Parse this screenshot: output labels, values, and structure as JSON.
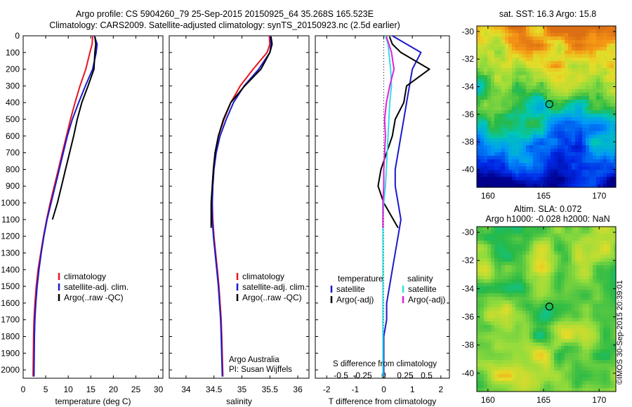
{
  "titles": {
    "line1": "Argo profile: CS 5904260_79 25-Sep-2015 20150925_64 35.268S 165.523E",
    "line2": "Climatology: CARS2009. Satellite-adjusted climatology: synTS_20150923.nc (2.5d earlier)"
  },
  "annotations": {
    "agency": "Argo Australia",
    "pi": "PI: Susan Wijffels",
    "sst": "sat. SST: 16.3 Argo: 15.8",
    "sla_line1": "Altim. SLA: 0.072",
    "sla_line2": "Argo h1000: -0.028 h2000: NaN",
    "stamp": "©IMOS 30-Sep-2015 20:39:01",
    "s_diff_label": "S difference from climatology"
  },
  "colors": {
    "climatology": "#e8141e",
    "satellite": "#1a1acc",
    "argo": "#000000",
    "sal_sat": "#33dde8",
    "sal_argo": "#e020d8"
  },
  "chart_data": [
    {
      "type": "line",
      "xlabel": "temperature (deg C)",
      "ylabel": "",
      "xlim": [
        0,
        31
      ],
      "ylim": [
        2050,
        0
      ],
      "xticks": [
        "0",
        "5",
        "10",
        "15",
        "20",
        "25",
        "30"
      ],
      "yticks": [
        "0",
        "100",
        "200",
        "300",
        "400",
        "500",
        "600",
        "700",
        "800",
        "900",
        "1000",
        "1100",
        "1200",
        "1300",
        "1400",
        "1500",
        "1600",
        "1700",
        "1800",
        "1900",
        "2000"
      ],
      "legend": [
        "climatology",
        "satellite-adj. clim.",
        "Argo(..raw -QC)"
      ],
      "series": [
        {
          "name": "climatology",
          "color": "#e8141e",
          "x": [
            15.4,
            15.3,
            14.8,
            13.9,
            12.6,
            11.5,
            10.5,
            9.6,
            8.7,
            7.8,
            6.9,
            6.0,
            5.2,
            4.5,
            3.9,
            3.3,
            2.9,
            2.6,
            2.4,
            2.3,
            2.2
          ],
          "y": [
            0,
            50,
            100,
            200,
            300,
            400,
            500,
            600,
            700,
            800,
            900,
            1000,
            1100,
            1200,
            1300,
            1400,
            1500,
            1600,
            1700,
            1800,
            2040
          ]
        },
        {
          "name": "satellite-adj. clim.",
          "color": "#1a1acc",
          "x": [
            15.8,
            16.4,
            16.2,
            15.4,
            13.8,
            12.3,
            10.9,
            9.8,
            8.9,
            8.0,
            7.1,
            6.2,
            5.3,
            4.6,
            4.0,
            3.5,
            3.1,
            2.8,
            2.6,
            2.5,
            2.4
          ],
          "y": [
            0,
            50,
            100,
            200,
            300,
            400,
            500,
            600,
            700,
            800,
            900,
            1000,
            1100,
            1200,
            1300,
            1400,
            1500,
            1600,
            1700,
            1800,
            2040
          ]
        },
        {
          "name": "Argo(..raw -QC)",
          "color": "#000000",
          "x": [
            15.9,
            16.1,
            15.9,
            15.7,
            14.4,
            13.0,
            12.0,
            11.2,
            10.3,
            9.4,
            8.5,
            7.6,
            6.5
          ],
          "y": [
            5,
            50,
            100,
            200,
            300,
            400,
            500,
            600,
            700,
            800,
            900,
            1000,
            1100
          ]
        }
      ]
    },
    {
      "type": "line",
      "xlabel": "salinity",
      "ylabel": "",
      "xlim": [
        33.7,
        36.2
      ],
      "ylim": [
        2050,
        0
      ],
      "xticks": [
        "34",
        "34.5",
        "35",
        "35.5",
        "36"
      ],
      "legend": [
        "climatology",
        "satellite-adj. clim.",
        "Argo(..raw -QC)"
      ],
      "series": [
        {
          "name": "climatology",
          "color": "#e8141e",
          "x": [
            35.49,
            35.5,
            35.45,
            35.2,
            34.97,
            34.8,
            34.68,
            34.58,
            34.52,
            34.49,
            34.47,
            34.47,
            34.48,
            34.5,
            34.53,
            34.56,
            34.59,
            34.61,
            34.63,
            34.64,
            34.66
          ],
          "y": [
            0,
            50,
            100,
            200,
            300,
            400,
            500,
            600,
            700,
            800,
            900,
            1000,
            1100,
            1200,
            1300,
            1400,
            1500,
            1600,
            1700,
            1800,
            2040
          ]
        },
        {
          "name": "satellite-adj. clim.",
          "color": "#1a1acc",
          "x": [
            35.51,
            35.52,
            35.5,
            35.3,
            35.04,
            34.85,
            34.72,
            34.61,
            34.54,
            34.5,
            34.48,
            34.47,
            34.47,
            34.49,
            34.52,
            34.55,
            34.58,
            34.6,
            34.62,
            34.63,
            34.65
          ],
          "y": [
            0,
            50,
            100,
            200,
            300,
            400,
            500,
            600,
            700,
            800,
            900,
            1000,
            1100,
            1200,
            1300,
            1400,
            1500,
            1600,
            1700,
            1800,
            2040
          ]
        },
        {
          "name": "Argo(..raw -QC)",
          "color": "#000000",
          "x": [
            35.52,
            35.54,
            35.5,
            35.34,
            35.05,
            34.8,
            34.67,
            34.58,
            34.52,
            34.49,
            34.47,
            34.45,
            34.45
          ],
          "y": [
            5,
            50,
            100,
            200,
            300,
            400,
            500,
            600,
            700,
            800,
            900,
            1000,
            1150
          ]
        }
      ]
    },
    {
      "type": "line",
      "xlabel": "T difference from climatology",
      "ylabel": "",
      "xlim": [
        -2.4,
        2.3
      ],
      "ylim": [
        2050,
        0
      ],
      "xticks": [
        "-2",
        "-1",
        "0",
        "1",
        "2"
      ],
      "secondary_xlabel": "S difference from climatology",
      "secondary_xlim": [
        -0.8,
        0.767
      ],
      "secondary_xticks": [
        "-0.5",
        "-0.25",
        "0",
        "0.25",
        "0.5"
      ],
      "legend": [
        "temperature",
        "satellite",
        "Argo(-adj)",
        "salinity",
        "satellite",
        "Argo(-adj)"
      ],
      "series": [
        {
          "name": "satellite",
          "color": "#1a1acc",
          "x": [
            0.3,
            0.8,
            1.3,
            1.0,
            0.9,
            0.8,
            0.7,
            0.6,
            0.5,
            0.4,
            0.4,
            0.5,
            0.6,
            0.5,
            0.4,
            0.3,
            0.2,
            0.1,
            0.1,
            0.0,
            0.0
          ],
          "y": [
            0,
            50,
            100,
            200,
            300,
            400,
            500,
            600,
            700,
            800,
            900,
            1000,
            1100,
            1200,
            1300,
            1400,
            1500,
            1600,
            1700,
            1800,
            2040
          ]
        },
        {
          "name": "Argo(-adj)",
          "color": "#000000",
          "x": [
            0.2,
            0.3,
            0.6,
            1.6,
            0.8,
            0.7,
            0.4,
            0.3,
            0.1,
            -0.1,
            -0.2,
            0.0,
            0.5
          ],
          "y": [
            5,
            50,
            100,
            200,
            300,
            400,
            500,
            600,
            700,
            800,
            900,
            1000,
            1150
          ]
        },
        {
          "name": "satellite",
          "color": "#33dde8",
          "axis": "secondary",
          "x": [
            0.02,
            0.05,
            0.06,
            0.08,
            0.09,
            0.07,
            0.06,
            0.05,
            0.04,
            0.03,
            0.02,
            0.0,
            -0.01,
            -0.01,
            -0.01,
            -0.01,
            -0.01,
            -0.01,
            -0.01,
            -0.01,
            -0.01
          ],
          "y": [
            0,
            50,
            100,
            200,
            300,
            400,
            500,
            600,
            700,
            800,
            900,
            1000,
            1100,
            1200,
            1300,
            1400,
            1500,
            1600,
            1700,
            1800,
            2040
          ]
        },
        {
          "name": "Argo(-adj)",
          "color": "#e020d8",
          "axis": "secondary",
          "x": [
            0.03,
            0.06,
            0.09,
            0.12,
            0.07,
            0.03,
            0.01,
            0.02,
            0.01,
            0.0,
            0.0,
            -0.01,
            -0.01
          ],
          "y": [
            5,
            50,
            100,
            200,
            300,
            400,
            500,
            600,
            700,
            800,
            900,
            1000,
            1150
          ]
        }
      ]
    },
    {
      "type": "heatmap",
      "title": "sat. SST: 16.3 Argo: 15.8",
      "xlim": [
        159,
        171.5
      ],
      "ylim": [
        -41.3,
        -29.6
      ],
      "xticks": [
        "160",
        "165",
        "170"
      ],
      "yticks": [
        "-30",
        "-32",
        "-34",
        "-36",
        "-38",
        "-40"
      ],
      "marker": {
        "lon": 165.523,
        "lat": -35.268
      }
    },
    {
      "type": "heatmap",
      "title": "Altim. SLA: 0.072",
      "xlim": [
        159,
        171.5
      ],
      "ylim": [
        -41.3,
        -29.6
      ],
      "xticks": [
        "160",
        "165",
        "170"
      ],
      "yticks": [
        "-30",
        "-32",
        "-34",
        "-36",
        "-38",
        "-40"
      ],
      "marker": {
        "lon": 165.523,
        "lat": -35.268
      }
    }
  ]
}
